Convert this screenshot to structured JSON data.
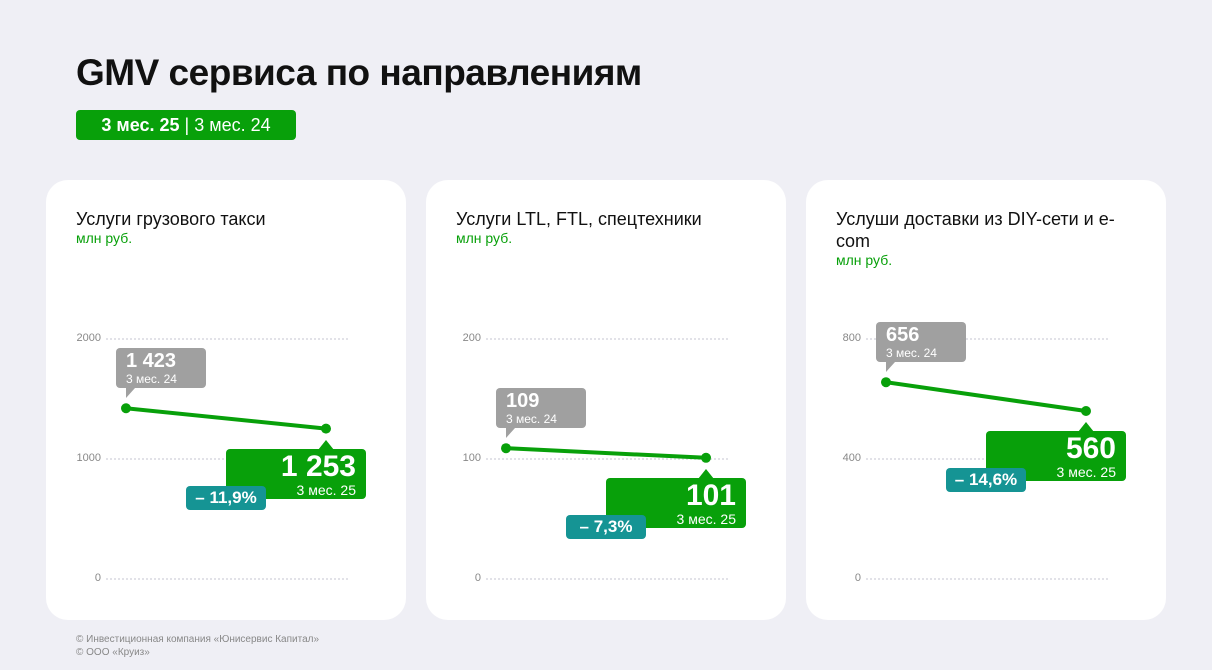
{
  "title": "GMV сервиса по направлениям",
  "period": {
    "current": "3 мес. 25",
    "sep": "|",
    "previous": "3 мес. 24"
  },
  "colors": {
    "green": "#08a00a",
    "gray": "#a0a0a0",
    "teal": "#159494"
  },
  "chart_data": [
    {
      "type": "line",
      "title": "Услуги грузового такси",
      "unit": "млн руб.",
      "ylim": [
        0,
        2000
      ],
      "ticks": [
        "0",
        "1000",
        "2000"
      ],
      "tick_values": [
        0,
        1000,
        2000
      ],
      "x": [
        "3 мес. 24",
        "3 мес. 25"
      ],
      "values": [
        1423,
        1253
      ],
      "labels": [
        "1 423",
        "1 253"
      ],
      "change": "– 11,9%"
    },
    {
      "type": "line",
      "title": "Услуги LTL, FTL, спецтехники",
      "unit": "млн руб.",
      "ylim": [
        0,
        200
      ],
      "ticks": [
        "0",
        "100",
        "200"
      ],
      "tick_values": [
        0,
        100,
        200
      ],
      "x": [
        "3 мес. 24",
        "3 мес. 25"
      ],
      "values": [
        109,
        101
      ],
      "labels": [
        "109",
        "101"
      ],
      "change": "– 7,3%"
    },
    {
      "type": "line",
      "title": "Услуши доставки из DIY-сети и e-com",
      "unit": "млн руб.",
      "ylim": [
        0,
        800
      ],
      "ticks": [
        "0",
        "400",
        "800"
      ],
      "tick_values": [
        0,
        400,
        800
      ],
      "x": [
        "3 мес. 24",
        "3 мес. 25"
      ],
      "values": [
        656,
        560
      ],
      "labels": [
        "656",
        "560"
      ],
      "change": "– 14,6%"
    }
  ],
  "footer": [
    "© Инвестиционная компания «Юнисервис Капитал»",
    "© ООО «Круиз»"
  ]
}
